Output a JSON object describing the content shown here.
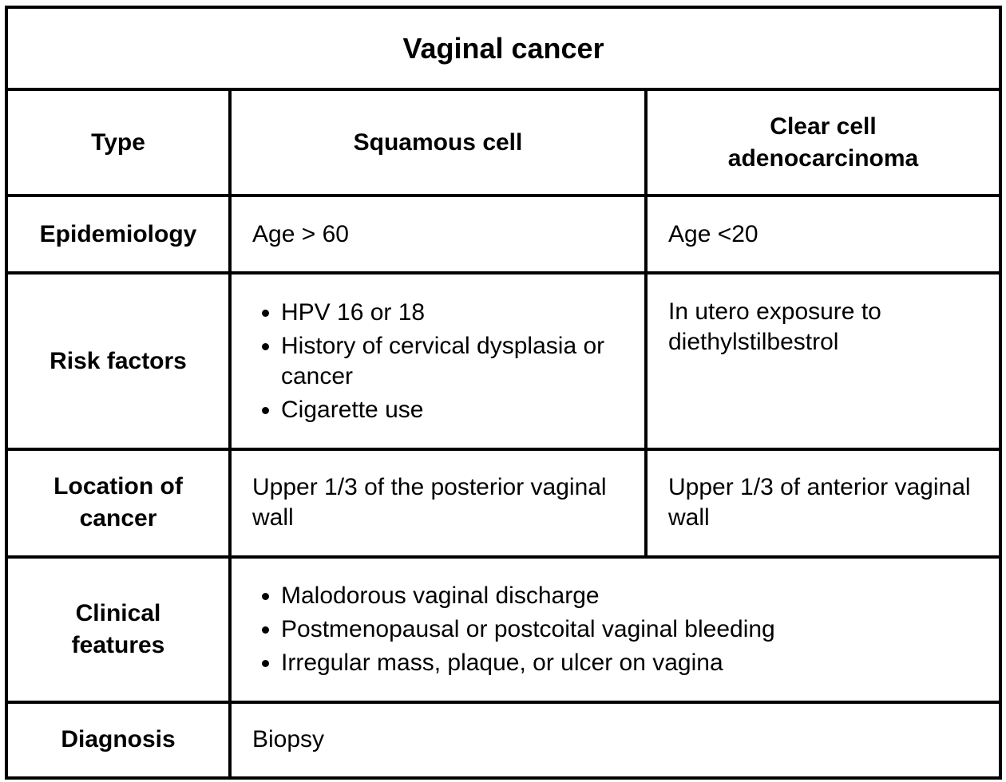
{
  "title": "Vaginal cancer",
  "header": {
    "row_label": "Type",
    "col1": "Squamous cell",
    "col2_line1": "Clear cell",
    "col2_line2": "adenocarcinoma"
  },
  "epidemiology": {
    "label": "Epidemiology",
    "squamous": "Age > 60",
    "clear_cell": "Age <20"
  },
  "risk_factors": {
    "label": "Risk factors",
    "squamous": [
      "HPV 16 or 18",
      "History of cervical dysplasia or cancer",
      "Cigarette use"
    ],
    "clear_cell": "In utero exposure to diethylstilbestrol"
  },
  "location": {
    "label_line1": "Location of",
    "label_line2": "cancer",
    "squamous": "Upper 1/3 of the posterior vaginal wall",
    "clear_cell": "Upper 1/3 of anterior vaginal wall"
  },
  "clinical_features": {
    "label_line1": "Clinical",
    "label_line2": "features",
    "items": [
      "Malodorous vaginal discharge",
      "Postmenopausal or postcoital vaginal bleeding",
      "Irregular mass, plaque, or ulcer on vagina"
    ]
  },
  "diagnosis": {
    "label": "Diagnosis",
    "value": "Biopsy"
  }
}
